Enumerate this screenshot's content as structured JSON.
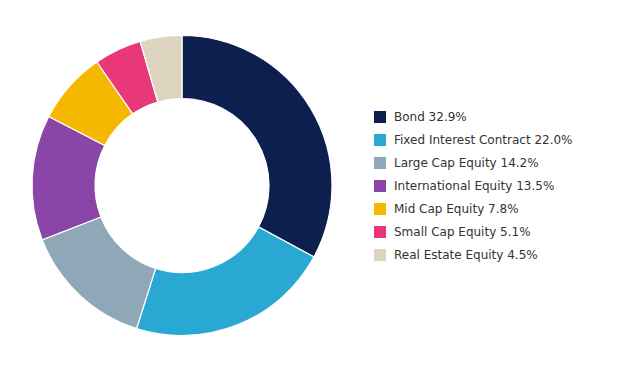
{
  "chart_data": {
    "type": "pie",
    "labels": [
      "Bond 32.9%",
      "Fixed Interest Contract 22.0%",
      "Large Cap Equity 14.2%",
      "International Equity 13.5%",
      "Mid Cap Equity 7.8%",
      "Small Cap Equity 5.1%",
      "Real Estate Equity 4.5%"
    ],
    "values": [
      32.9,
      22.0,
      14.2,
      13.5,
      7.8,
      5.1,
      4.5
    ],
    "colors": [
      "#0d1f4e",
      "#29a8d4",
      "#8fa8b8",
      "#8b44a8",
      "#f5b800",
      "#e8387a",
      "#ddd5c0"
    ],
    "legend": "right"
  }
}
